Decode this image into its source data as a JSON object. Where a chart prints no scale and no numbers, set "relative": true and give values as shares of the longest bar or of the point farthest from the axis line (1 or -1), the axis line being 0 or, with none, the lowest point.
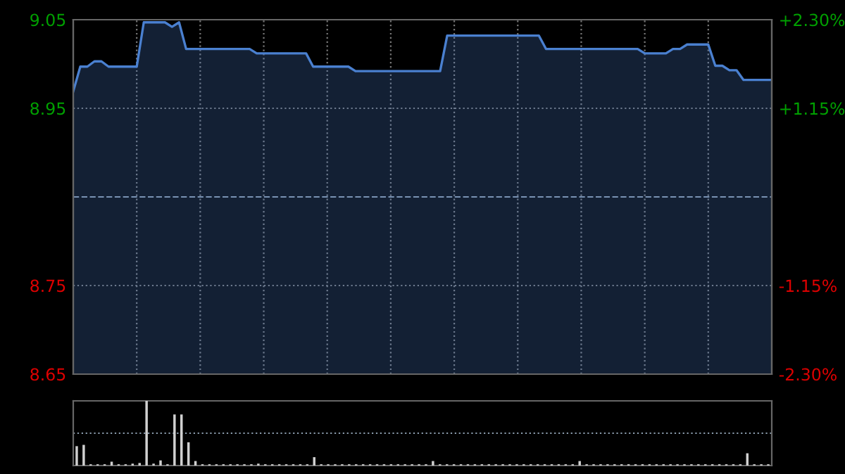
{
  "chart_data": [
    {
      "type": "area",
      "categories": [
        null,
        null,
        null,
        null,
        null,
        null,
        null,
        null,
        null,
        null,
        null,
        null,
        null,
        null,
        null,
        null,
        null,
        null,
        null,
        null,
        null,
        null,
        null,
        null,
        null,
        null,
        null,
        null,
        null,
        null,
        null,
        null,
        null,
        null,
        null,
        null,
        null,
        null,
        null,
        null,
        null,
        null,
        null,
        null,
        null,
        null,
        null,
        null,
        null,
        null,
        null,
        null,
        null,
        null,
        null,
        null,
        null,
        null,
        null,
        null,
        null,
        null,
        null,
        null,
        null,
        null,
        null,
        null,
        null,
        null,
        null,
        null,
        null,
        null,
        null,
        null,
        null,
        null,
        null,
        null,
        null,
        null,
        null,
        null,
        null,
        null,
        null,
        null,
        null,
        null,
        null,
        null,
        null,
        null,
        null,
        null,
        null,
        null,
        null,
        null
      ],
      "series": [
        {
          "color": "#4a80d0",
          "values": [
            8.969,
            8.997,
            8.997,
            9.003,
            9.003,
            8.997,
            8.997,
            8.997,
            8.997,
            8.997,
            9.047,
            9.047,
            9.047,
            9.047,
            9.042,
            9.047,
            9.017,
            9.017,
            9.017,
            9.017,
            9.017,
            9.017,
            9.017,
            9.017,
            9.017,
            9.017,
            9.012,
            9.012,
            9.012,
            9.012,
            9.012,
            9.012,
            9.012,
            9.012,
            8.997,
            8.997,
            8.997,
            8.997,
            8.997,
            8.997,
            8.992,
            8.992,
            8.992,
            8.992,
            8.992,
            8.992,
            8.992,
            8.992,
            8.992,
            8.992,
            8.992,
            8.992,
            8.992,
            9.032,
            9.032,
            9.032,
            9.032,
            9.032,
            9.032,
            9.032,
            9.032,
            9.032,
            9.032,
            9.032,
            9.032,
            9.032,
            9.032,
            9.017,
            9.017,
            9.017,
            9.017,
            9.017,
            9.017,
            9.017,
            9.017,
            9.017,
            9.017,
            9.017,
            9.017,
            9.017,
            9.017,
            9.012,
            9.012,
            9.012,
            9.012,
            9.017,
            9.017,
            9.022,
            9.022,
            9.022,
            9.022,
            8.998,
            8.998,
            8.993,
            8.993,
            8.982,
            8.982,
            8.982,
            8.982,
            8.982
          ]
        }
      ],
      "ylim": [
        8.65,
        9.05
      ],
      "yticks": [
        9.05,
        8.95,
        8.75,
        8.65
      ],
      "y2lim": [
        -2.3,
        2.3
      ],
      "y2ticks": [
        {
          "value": 2.3,
          "label": "+2.30%"
        },
        {
          "value": 1.15,
          "label": "+1.15%"
        },
        {
          "value": -1.15,
          "label": "-1.15%"
        },
        {
          "value": -2.3,
          "label": "-2.30%"
        }
      ],
      "ref_lines": [
        {
          "axis": "y",
          "value": 8.85,
          "line_style": "dashed"
        }
      ],
      "grid": true,
      "legend": false,
      "tick_labels": "y"
    },
    {
      "type": "bar",
      "relative": true,
      "categories": [
        null,
        null,
        null,
        null,
        null,
        null,
        null,
        null,
        null,
        null,
        null,
        null,
        null,
        null,
        null,
        null,
        null,
        null,
        null,
        null,
        null,
        null,
        null,
        null,
        null,
        null,
        null,
        null,
        null,
        null,
        null,
        null,
        null,
        null,
        null,
        null,
        null,
        null,
        null,
        null,
        null,
        null,
        null,
        null,
        null,
        null,
        null,
        null,
        null,
        null,
        null,
        null,
        null,
        null,
        null,
        null,
        null,
        null,
        null,
        null,
        null,
        null,
        null,
        null,
        null,
        null,
        null,
        null,
        null,
        null,
        null,
        null,
        null,
        null,
        null,
        null,
        null,
        null,
        null,
        null,
        null,
        null,
        null,
        null,
        null,
        null,
        null,
        null,
        null,
        null,
        null,
        null,
        null,
        null,
        null,
        null,
        null,
        null,
        null,
        null
      ],
      "series": [
        {
          "color": "#d0d0d0",
          "values": [
            0.3,
            0.32,
            0.02,
            0.02,
            0.02,
            0.06,
            0.02,
            0.02,
            0.03,
            0.04,
            1.0,
            0.03,
            0.08,
            0.02,
            0.79,
            0.79,
            0.36,
            0.07,
            0.02,
            0.02,
            0.02,
            0.02,
            0.02,
            0.02,
            0.02,
            0.02,
            0.03,
            0.02,
            0.02,
            0.02,
            0.02,
            0.02,
            0.02,
            0.02,
            0.13,
            0.02,
            0.02,
            0.02,
            0.02,
            0.02,
            0.02,
            0.02,
            0.02,
            0.02,
            0.02,
            0.02,
            0.02,
            0.02,
            0.02,
            0.02,
            0.02,
            0.07,
            0.02,
            0.02,
            0.02,
            0.02,
            0.02,
            0.02,
            0.02,
            0.02,
            0.02,
            0.02,
            0.02,
            0.02,
            0.02,
            0.02,
            0.02,
            0.02,
            0.02,
            0.02,
            0.02,
            0.02,
            0.07,
            0.02,
            0.02,
            0.02,
            0.02,
            0.02,
            0.02,
            0.02,
            0.02,
            0.02,
            0.02,
            0.02,
            0.02,
            0.02,
            0.02,
            0.02,
            0.02,
            0.02,
            0.02,
            0.02,
            0.02,
            0.02,
            0.02,
            0.02,
            0.19,
            0.02,
            0.02,
            0.02
          ]
        }
      ],
      "ref_lines": [
        {
          "axis": "y",
          "value": 0.5,
          "line_style": "dotted"
        }
      ],
      "legend": false,
      "tick_labels": false
    }
  ]
}
